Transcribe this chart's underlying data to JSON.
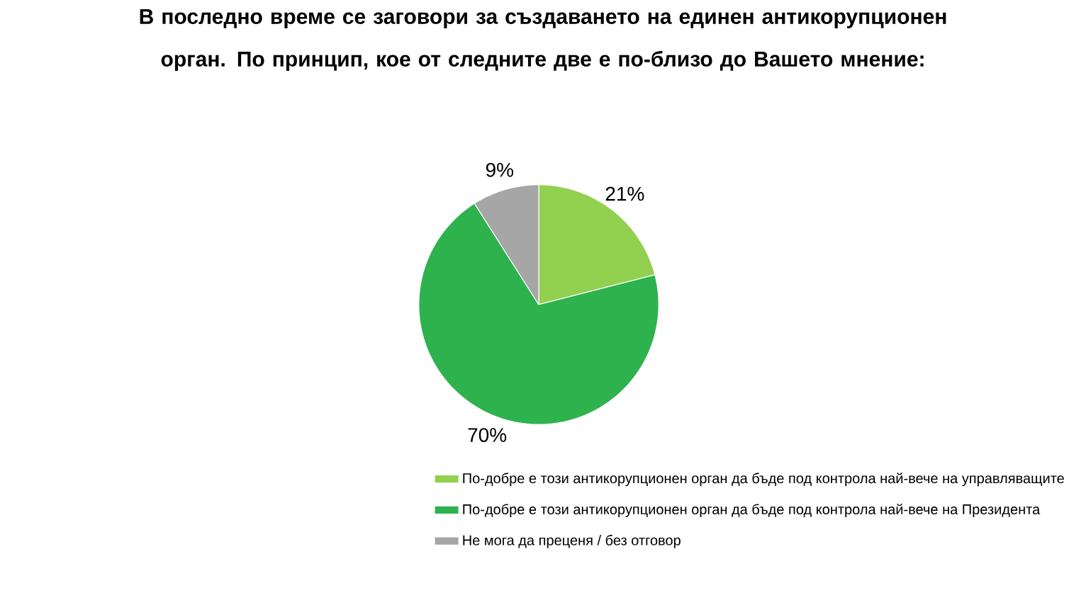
{
  "chart_data": {
    "type": "pie",
    "title": "В последно време се заговори за създаването на единен антикорупционен орган. По принцип, кое от следните две е по-близо до Вашето мнение:",
    "categories": [
      "По-добре е този антикорупционен орган да бъде под контрола най-вече на управляващите",
      "По-добре е този антикорупционен орган да бъде под контрола най-вече на Президента",
      "Не мога да преценя / без отговор"
    ],
    "values": [
      21,
      70,
      9
    ],
    "colors": [
      "#92d050",
      "#2eb24e",
      "#a6a6a6"
    ],
    "value_labels": [
      "21%",
      "70%",
      "9%"
    ],
    "legend": "bottom"
  }
}
